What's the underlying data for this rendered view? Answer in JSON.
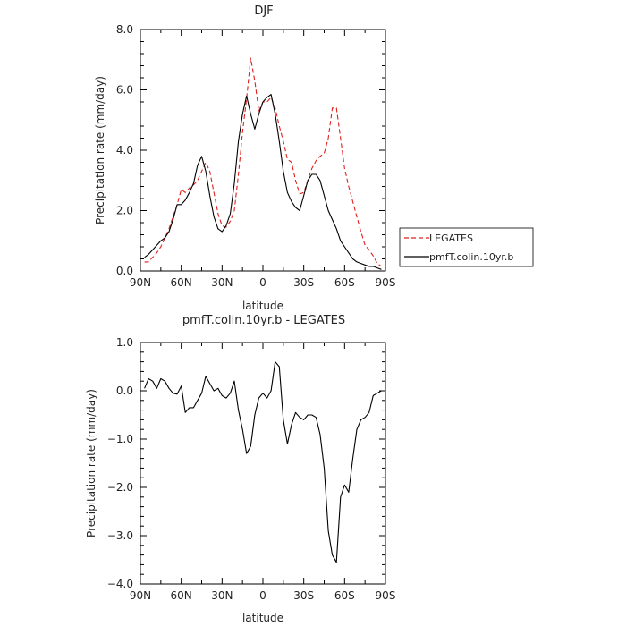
{
  "chart_data": [
    {
      "type": "line",
      "title": "DJF",
      "xlabel": "latitude",
      "ylabel": "Precipitation rate (mm/day)",
      "xlim": [
        90,
        -90
      ],
      "ylim": [
        0,
        8
      ],
      "x_ticks": [
        90,
        60,
        30,
        0,
        -30,
        -60,
        -90
      ],
      "x_tick_labels": [
        "90N",
        "60N",
        "30N",
        "0",
        "30S",
        "60S",
        "90S"
      ],
      "y_ticks": [
        0,
        2,
        4,
        6,
        8
      ],
      "y_tick_labels": [
        "0.0",
        "2.0",
        "4.0",
        "6.0",
        "8.0"
      ],
      "legend_position": "right",
      "series": [
        {
          "name": "LEGATES",
          "color": "#e0201b",
          "dash": "dashed",
          "x": [
            87,
            84,
            81,
            78,
            75,
            72,
            69,
            66,
            63,
            60,
            57,
            54,
            51,
            48,
            45,
            42,
            39,
            36,
            33,
            30,
            27,
            24,
            21,
            18,
            15,
            12,
            9,
            6,
            3,
            0,
            -3,
            -6,
            -9,
            -12,
            -15,
            -18,
            -21,
            -24,
            -27,
            -30,
            -33,
            -36,
            -39,
            -42,
            -45,
            -48,
            -51,
            -54,
            -57,
            -60,
            -63,
            -66,
            -69,
            -72,
            -75,
            -78,
            -81,
            -84,
            -87
          ],
          "y": [
            0.3,
            0.3,
            0.45,
            0.6,
            0.8,
            1.1,
            1.4,
            1.8,
            2.2,
            2.7,
            2.6,
            2.75,
            2.85,
            3.0,
            3.3,
            3.6,
            3.3,
            2.6,
            1.9,
            1.5,
            1.45,
            1.65,
            2.0,
            3.2,
            4.6,
            5.7,
            7.05,
            6.3,
            5.3,
            5.6,
            5.6,
            5.75,
            5.4,
            4.8,
            4.3,
            3.7,
            3.6,
            3.0,
            2.55,
            2.6,
            3.0,
            3.4,
            3.65,
            3.8,
            3.9,
            4.4,
            5.4,
            5.4,
            4.4,
            3.4,
            2.8,
            2.3,
            1.8,
            1.3,
            0.85,
            0.7,
            0.5,
            0.25,
            0.15
          ]
        },
        {
          "name": "pmfT.colin.10yr.b",
          "color": "#000000",
          "dash": "solid",
          "x": [
            87,
            84,
            81,
            78,
            75,
            72,
            69,
            66,
            63,
            60,
            57,
            54,
            51,
            48,
            45,
            42,
            39,
            36,
            33,
            30,
            27,
            24,
            21,
            18,
            15,
            12,
            9,
            6,
            3,
            0,
            -3,
            -6,
            -9,
            -12,
            -15,
            -18,
            -21,
            -24,
            -27,
            -30,
            -33,
            -36,
            -39,
            -42,
            -45,
            -48,
            -51,
            -54,
            -57,
            -60,
            -63,
            -66,
            -69,
            -72,
            -75,
            -78,
            -81,
            -84,
            -87
          ],
          "y": [
            0.45,
            0.55,
            0.7,
            0.85,
            1.0,
            1.1,
            1.3,
            1.7,
            2.2,
            2.2,
            2.35,
            2.6,
            2.9,
            3.5,
            3.8,
            3.3,
            2.5,
            1.8,
            1.4,
            1.3,
            1.5,
            1.9,
            2.9,
            4.3,
            5.2,
            5.8,
            5.2,
            4.7,
            5.2,
            5.6,
            5.75,
            5.85,
            5.2,
            4.3,
            3.3,
            2.6,
            2.3,
            2.1,
            2.0,
            2.5,
            3.0,
            3.2,
            3.2,
            3.0,
            2.5,
            2.0,
            1.7,
            1.4,
            1.0,
            0.8,
            0.6,
            0.4,
            0.3,
            0.25,
            0.2,
            0.15,
            0.15,
            0.1,
            0.05
          ]
        }
      ]
    },
    {
      "type": "line",
      "title": "pmfT.colin.10yr.b - LEGATES",
      "xlabel": "latitude",
      "ylabel": "Precipitation rate (mm/day)",
      "xlim": [
        90,
        -90
      ],
      "ylim": [
        -4,
        1
      ],
      "x_ticks": [
        90,
        60,
        30,
        0,
        -30,
        -60,
        -90
      ],
      "x_tick_labels": [
        "90N",
        "60N",
        "30N",
        "0",
        "30S",
        "60S",
        "90S"
      ],
      "y_ticks": [
        -4,
        -3,
        -2,
        -1,
        0,
        1
      ],
      "y_tick_labels": [
        "−4.0",
        "−3.0",
        "−2.0",
        "−1.0",
        "0.0",
        "1.0"
      ],
      "series": [
        {
          "name": "",
          "color": "#000000",
          "dash": "solid",
          "x": [
            87,
            84,
            81,
            78,
            75,
            72,
            69,
            66,
            63,
            60,
            57,
            54,
            51,
            48,
            45,
            42,
            39,
            36,
            33,
            30,
            27,
            24,
            21,
            18,
            15,
            12,
            9,
            6,
            3,
            0,
            -3,
            -6,
            -9,
            -12,
            -15,
            -18,
            -21,
            -24,
            -27,
            -30,
            -33,
            -36,
            -39,
            -42,
            -45,
            -48,
            -51,
            -54,
            -57,
            -60,
            -63,
            -66,
            -69,
            -72,
            -75,
            -78,
            -81,
            -84,
            -87,
            -89
          ],
          "y": [
            0.05,
            0.25,
            0.2,
            0.05,
            0.25,
            0.2,
            0.05,
            -0.05,
            -0.07,
            0.1,
            -0.45,
            -0.35,
            -0.35,
            -0.2,
            -0.05,
            0.3,
            0.15,
            0.0,
            0.05,
            -0.1,
            -0.15,
            -0.05,
            0.2,
            -0.4,
            -0.8,
            -1.3,
            -1.15,
            -0.5,
            -0.15,
            -0.05,
            -0.15,
            0.0,
            0.6,
            0.5,
            -0.6,
            -1.1,
            -0.7,
            -0.45,
            -0.55,
            -0.6,
            -0.5,
            -0.5,
            -0.55,
            -0.9,
            -1.6,
            -2.9,
            -3.4,
            -3.55,
            -2.2,
            -1.95,
            -2.1,
            -1.4,
            -0.8,
            -0.6,
            -0.55,
            -0.45,
            -0.1,
            -0.05,
            0.0,
            0.0
          ]
        }
      ]
    }
  ]
}
